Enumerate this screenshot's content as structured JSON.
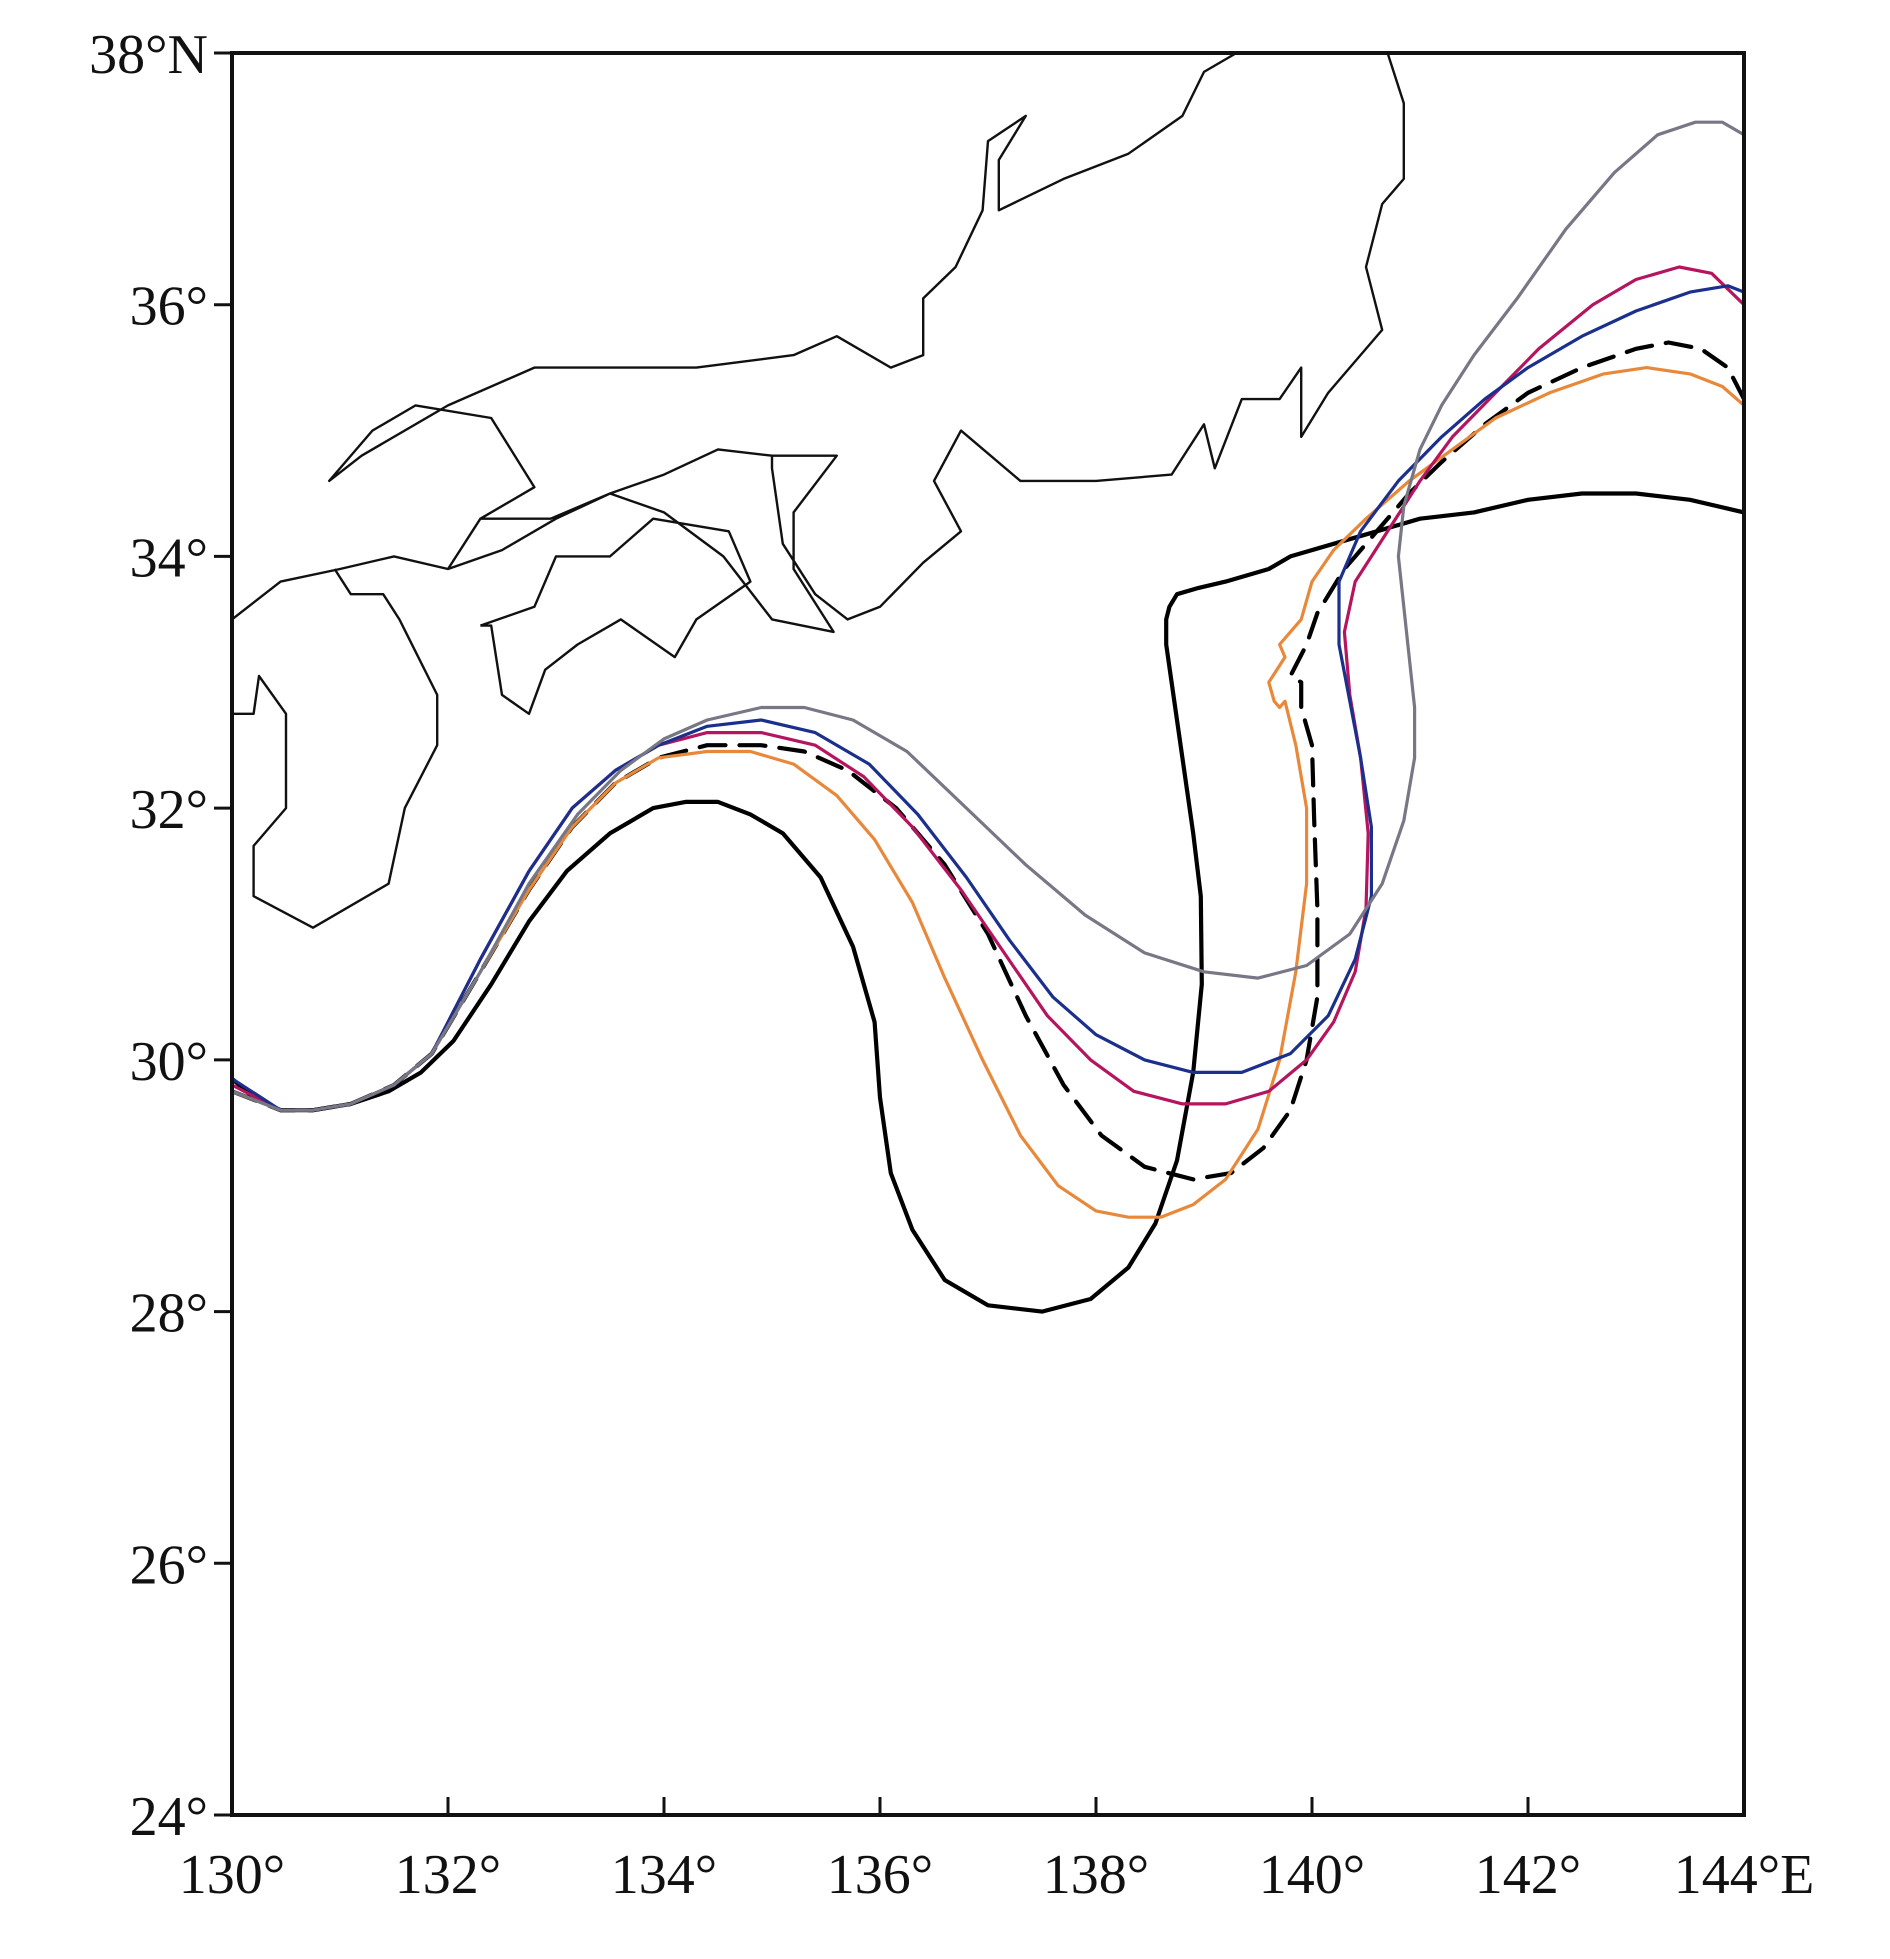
{
  "chart_data": {
    "type": "line",
    "title": "",
    "xlabel": "",
    "ylabel": "",
    "xlim": [
      130,
      144
    ],
    "ylim": [
      24,
      38
    ],
    "x_ticks": [
      130,
      132,
      134,
      136,
      138,
      140,
      142,
      144
    ],
    "y_ticks": [
      24,
      26,
      28,
      30,
      32,
      34,
      36,
      38
    ],
    "x_tick_labels": [
      "130°",
      "132°",
      "134°",
      "136°",
      "138°",
      "140°",
      "142°",
      "144°E"
    ],
    "y_tick_labels": [
      "24°",
      "26°",
      "28°",
      "30°",
      "32°",
      "34°",
      "36°",
      "38°N"
    ],
    "grid": false,
    "legend": "none",
    "coastlines": [
      [
        [
          130.0,
          33.5
        ],
        [
          130.45,
          33.8
        ],
        [
          131.0,
          33.9
        ],
        [
          131.5,
          34.0
        ],
        [
          132.0,
          33.9
        ],
        [
          132.3,
          34.3
        ],
        [
          132.95,
          34.3
        ],
        [
          133.5,
          34.5
        ],
        [
          134.0,
          34.35
        ],
        [
          134.55,
          34.0
        ],
        [
          135.0,
          33.5
        ],
        [
          135.57,
          33.4
        ],
        [
          135.2,
          33.9
        ],
        [
          135.2,
          34.35
        ],
        [
          135.6,
          34.8
        ],
        [
          135.0,
          34.8
        ],
        [
          134.5,
          34.85
        ],
        [
          134.0,
          34.65
        ],
        [
          133.5,
          34.5
        ],
        [
          133.0,
          34.3
        ],
        [
          132.5,
          34.05
        ],
        [
          132.0,
          33.9
        ],
        [
          132.3,
          34.3
        ],
        [
          132.8,
          34.55
        ],
        [
          132.4,
          35.1
        ],
        [
          131.7,
          35.2
        ],
        [
          131.3,
          35.0
        ],
        [
          130.9,
          34.6
        ],
        [
          131.2,
          34.8
        ],
        [
          132.0,
          35.2
        ],
        [
          132.8,
          35.5
        ],
        [
          133.5,
          35.5
        ],
        [
          134.3,
          35.5
        ],
        [
          135.2,
          35.6
        ],
        [
          135.6,
          35.75
        ],
        [
          136.1,
          35.5
        ],
        [
          136.4,
          35.6
        ],
        [
          136.4,
          36.05
        ],
        [
          136.7,
          36.3
        ],
        [
          136.95,
          36.75
        ],
        [
          137.0,
          37.3
        ],
        [
          137.35,
          37.5
        ],
        [
          137.1,
          37.15
        ],
        [
          137.1,
          36.75
        ],
        [
          137.7,
          37.0
        ],
        [
          138.3,
          37.2
        ],
        [
          138.8,
          37.5
        ],
        [
          139.0,
          37.85
        ],
        [
          139.3,
          38.0
        ],
        [
          140.0,
          38.0
        ],
        [
          140.7,
          38.0
        ],
        [
          140.85,
          37.6
        ],
        [
          140.85,
          37.0
        ],
        [
          140.65,
          36.8
        ],
        [
          140.5,
          36.3
        ],
        [
          140.65,
          35.8
        ],
        [
          140.35,
          35.5
        ],
        [
          140.15,
          35.3
        ],
        [
          139.9,
          34.95
        ],
        [
          139.9,
          35.5
        ],
        [
          139.7,
          35.25
        ],
        [
          139.35,
          35.25
        ],
        [
          139.1,
          34.7
        ],
        [
          139.0,
          35.05
        ],
        [
          138.7,
          34.65
        ],
        [
          138.0,
          34.6
        ],
        [
          137.3,
          34.6
        ],
        [
          136.75,
          35.0
        ],
        [
          136.5,
          34.6
        ],
        [
          136.75,
          34.2
        ],
        [
          136.4,
          33.95
        ],
        [
          136.0,
          33.6
        ],
        [
          135.7,
          33.5
        ],
        [
          135.4,
          33.7
        ],
        [
          135.1,
          34.1
        ],
        [
          135.0,
          34.7
        ],
        [
          135.0,
          34.8
        ]
      ],
      [
        [
          130.0,
          32.75
        ],
        [
          130.2,
          32.75
        ],
        [
          130.25,
          33.05
        ],
        [
          130.5,
          32.75
        ],
        [
          130.5,
          32.0
        ],
        [
          130.2,
          31.7
        ],
        [
          130.2,
          31.3
        ],
        [
          130.75,
          31.05
        ],
        [
          131.45,
          31.4
        ],
        [
          131.6,
          32.0
        ],
        [
          131.9,
          32.5
        ],
        [
          131.9,
          32.9
        ],
        [
          131.55,
          33.5
        ],
        [
          131.4,
          33.7
        ],
        [
          131.1,
          33.7
        ],
        [
          130.95,
          33.9
        ]
      ],
      [
        [
          132.3,
          33.45
        ],
        [
          132.8,
          33.6
        ],
        [
          133.0,
          34.0
        ],
        [
          133.5,
          34.0
        ],
        [
          133.9,
          34.3
        ],
        [
          134.6,
          34.2
        ],
        [
          134.8,
          33.8
        ],
        [
          134.3,
          33.5
        ],
        [
          134.1,
          33.2
        ],
        [
          133.6,
          33.5
        ],
        [
          133.2,
          33.3
        ],
        [
          132.9,
          33.1
        ],
        [
          132.75,
          32.75
        ],
        [
          132.5,
          32.9
        ],
        [
          132.4,
          33.45
        ],
        [
          132.3,
          33.45
        ]
      ]
    ],
    "series": [
      {
        "color": "#000000",
        "dash": "solid",
        "stroke_width": 4.2,
        "x": [
          130.0,
          130.2,
          130.45,
          130.75,
          131.1,
          131.45,
          131.75,
          132.05,
          132.4,
          132.75,
          133.1,
          133.5,
          133.9,
          134.2,
          134.5,
          134.8,
          135.1,
          135.45,
          135.75,
          135.95,
          136.0,
          136.1,
          136.3,
          136.6,
          137.0,
          137.5,
          137.95,
          138.3,
          138.55,
          138.75,
          138.9,
          138.98,
          138.97,
          138.9,
          138.8,
          138.7,
          138.65,
          138.65,
          138.68,
          138.75,
          138.95,
          139.2,
          139.6,
          139.8,
          140.2,
          140.6,
          141.0,
          141.5,
          142.0,
          142.5,
          143.0,
          143.5,
          144.0
        ],
        "y": [
          29.85,
          29.7,
          29.6,
          29.6,
          29.65,
          29.75,
          29.9,
          30.15,
          30.6,
          31.1,
          31.5,
          31.8,
          32.0,
          32.05,
          32.05,
          31.95,
          31.8,
          31.45,
          30.9,
          30.3,
          29.7,
          29.1,
          28.65,
          28.25,
          28.05,
          28.0,
          28.1,
          28.35,
          28.7,
          29.2,
          29.9,
          30.6,
          31.3,
          31.8,
          32.4,
          33.0,
          33.3,
          33.5,
          33.6,
          33.7,
          33.75,
          33.8,
          33.9,
          34.0,
          34.1,
          34.2,
          34.3,
          34.35,
          34.45,
          34.5,
          34.5,
          34.45,
          34.35
        ]
      },
      {
        "color": "#000000",
        "dash": "dashed",
        "stroke_width": 4.2,
        "x": [
          130.0,
          130.45,
          130.75,
          131.1,
          131.5,
          131.85,
          132.3,
          132.75,
          133.15,
          133.55,
          133.95,
          134.4,
          134.9,
          135.3,
          135.7,
          136.15,
          136.6,
          137.0,
          137.35,
          137.7,
          138.05,
          138.45,
          138.9,
          139.25,
          139.55,
          139.8,
          139.95,
          140.05,
          140.05,
          140.02,
          140.0,
          139.9,
          139.9,
          139.8,
          139.95,
          140.05,
          140.3,
          140.6,
          140.9,
          141.2,
          141.6,
          142.0,
          142.5,
          143.0,
          143.3,
          143.6,
          143.85,
          144.0
        ],
        "y": [
          29.75,
          29.6,
          29.6,
          29.65,
          29.8,
          30.05,
          30.7,
          31.35,
          31.85,
          32.2,
          32.4,
          32.5,
          32.5,
          32.45,
          32.3,
          32.0,
          31.55,
          31.0,
          30.35,
          29.8,
          29.4,
          29.15,
          29.05,
          29.1,
          29.3,
          29.6,
          30.0,
          30.5,
          31.2,
          31.9,
          32.5,
          32.8,
          33.0,
          33.05,
          33.3,
          33.55,
          33.9,
          34.2,
          34.5,
          34.75,
          35.05,
          35.3,
          35.5,
          35.65,
          35.7,
          35.65,
          35.5,
          35.25
        ]
      },
      {
        "color": "#e8883a",
        "dash": "solid",
        "stroke_width": 3.2,
        "x": [
          130.0,
          130.45,
          130.75,
          131.1,
          131.5,
          131.85,
          132.3,
          132.75,
          133.15,
          133.55,
          133.95,
          134.4,
          134.8,
          135.2,
          135.6,
          135.95,
          136.3,
          136.6,
          136.95,
          137.3,
          137.65,
          138.0,
          138.3,
          138.6,
          138.9,
          139.2,
          139.5,
          139.7,
          139.85,
          139.95,
          139.95,
          139.85,
          139.75,
          139.7,
          139.65,
          139.6,
          139.75,
          139.7,
          139.9,
          140.0,
          140.2,
          140.5,
          140.9,
          141.3,
          141.7,
          142.2,
          142.7,
          143.1,
          143.5,
          143.8,
          144.0
        ],
        "y": [
          29.75,
          29.6,
          29.6,
          29.65,
          29.8,
          30.05,
          30.7,
          31.35,
          31.85,
          32.2,
          32.4,
          32.45,
          32.45,
          32.35,
          32.1,
          31.75,
          31.25,
          30.65,
          30.0,
          29.4,
          29.0,
          28.8,
          28.75,
          28.75,
          28.85,
          29.05,
          29.45,
          30.0,
          30.7,
          31.4,
          32.0,
          32.5,
          32.85,
          32.8,
          32.85,
          33.0,
          33.2,
          33.3,
          33.5,
          33.8,
          34.05,
          34.3,
          34.6,
          34.85,
          35.1,
          35.3,
          35.45,
          35.5,
          35.45,
          35.35,
          35.2
        ]
      },
      {
        "color": "#b5155e",
        "dash": "solid",
        "stroke_width": 3.2,
        "x": [
          130.0,
          130.45,
          130.75,
          131.1,
          131.5,
          131.85,
          132.3,
          132.75,
          133.15,
          133.55,
          133.95,
          134.4,
          134.9,
          135.4,
          135.85,
          136.3,
          136.75,
          137.15,
          137.55,
          137.95,
          138.35,
          138.8,
          139.2,
          139.6,
          139.95,
          140.2,
          140.4,
          140.5,
          140.52,
          140.45,
          140.35,
          140.3,
          140.4,
          140.7,
          141.0,
          141.3,
          141.7,
          142.1,
          142.6,
          143.0,
          143.4,
          143.7,
          144.0
        ],
        "y": [
          29.8,
          29.6,
          29.6,
          29.65,
          29.8,
          30.05,
          30.8,
          31.5,
          32.0,
          32.3,
          32.5,
          32.6,
          32.6,
          32.5,
          32.25,
          31.85,
          31.35,
          30.85,
          30.35,
          30.0,
          29.75,
          29.65,
          29.65,
          29.75,
          30.0,
          30.3,
          30.7,
          31.2,
          31.8,
          32.4,
          32.9,
          33.4,
          33.8,
          34.2,
          34.6,
          34.95,
          35.3,
          35.65,
          36.0,
          36.2,
          36.3,
          36.25,
          36.0
        ]
      },
      {
        "color": "#1b2f8c",
        "dash": "solid",
        "stroke_width": 3.2,
        "x": [
          130.0,
          130.45,
          130.75,
          131.1,
          131.5,
          131.85,
          132.3,
          132.75,
          133.15,
          133.55,
          133.95,
          134.4,
          134.9,
          135.4,
          135.9,
          136.35,
          136.8,
          137.2,
          137.6,
          138.0,
          138.45,
          138.9,
          139.35,
          139.8,
          140.15,
          140.4,
          140.55,
          140.55,
          140.45,
          140.35,
          140.25,
          140.25,
          140.45,
          140.8,
          141.2,
          141.6,
          142.0,
          142.5,
          143.0,
          143.5,
          143.85,
          144.0
        ],
        "y": [
          29.85,
          29.6,
          29.6,
          29.65,
          29.8,
          30.05,
          30.8,
          31.5,
          32.0,
          32.3,
          32.5,
          32.65,
          32.7,
          32.6,
          32.35,
          31.95,
          31.45,
          30.95,
          30.5,
          30.2,
          30.0,
          29.9,
          29.9,
          30.05,
          30.35,
          30.8,
          31.3,
          31.85,
          32.4,
          32.85,
          33.3,
          33.8,
          34.2,
          34.6,
          34.95,
          35.25,
          35.5,
          35.75,
          35.95,
          36.1,
          36.15,
          36.1
        ]
      },
      {
        "color": "#777785",
        "dash": "solid",
        "stroke_width": 3.2,
        "x": [
          130.0,
          130.45,
          130.75,
          131.1,
          131.5,
          131.85,
          132.3,
          132.75,
          133.2,
          133.6,
          134.0,
          134.4,
          134.9,
          135.3,
          135.75,
          136.25,
          136.8,
          137.35,
          137.9,
          138.45,
          139.0,
          139.5,
          139.95,
          140.35,
          140.65,
          140.85,
          140.95,
          140.95,
          140.9,
          140.85,
          140.8,
          140.85,
          141.0,
          141.2,
          141.5,
          141.9,
          142.35,
          142.8,
          143.2,
          143.55,
          143.8,
          144.0
        ],
        "y": [
          29.75,
          29.6,
          29.6,
          29.65,
          29.8,
          30.05,
          30.7,
          31.4,
          31.95,
          32.3,
          32.55,
          32.7,
          32.8,
          32.8,
          32.7,
          32.45,
          32.0,
          31.55,
          31.15,
          30.85,
          30.7,
          30.65,
          30.75,
          31.0,
          31.4,
          31.9,
          32.4,
          32.8,
          33.2,
          33.6,
          34.0,
          34.4,
          34.85,
          35.2,
          35.6,
          36.05,
          36.6,
          37.05,
          37.35,
          37.45,
          37.45,
          37.35
        ]
      }
    ]
  }
}
